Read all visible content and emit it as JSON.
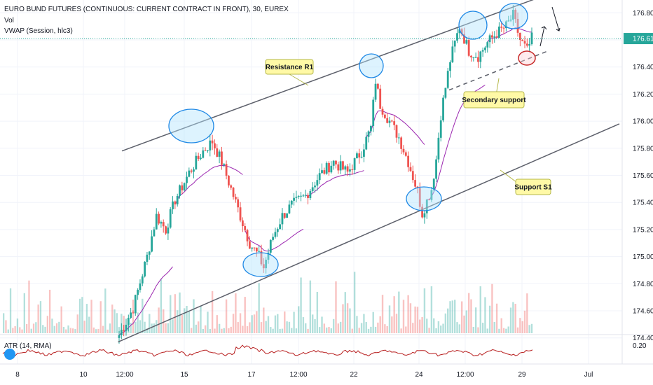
{
  "header": {
    "title": "EURO BUND FUTURES (CONTINUOUS: CURRENT CONTRACT IN FRONT), 30, EUREX",
    "vol_label": "Vol",
    "vwap_label": "VWAP (Session, hlc3)"
  },
  "atr": {
    "label": "ATR (14, RMA)",
    "tick": "0.20"
  },
  "price_axis": {
    "ticks": [
      "176.80",
      "176.60",
      "176.40",
      "176.20",
      "176.00",
      "175.80",
      "175.60",
      "175.40",
      "175.20",
      "175.00",
      "174.80",
      "174.60",
      "174.40"
    ],
    "last_price": "176.61"
  },
  "time_axis": {
    "ticks": [
      "8",
      "10",
      "12:00",
      "15",
      "17",
      "12:00",
      "22",
      "24",
      "12:00",
      "29",
      "Jul"
    ]
  },
  "annotations": {
    "resistance": "Resistance R1",
    "secondary": "Secondary support",
    "support": "Support S1"
  },
  "colors": {
    "up": "#26a69a",
    "down": "#ef5350",
    "vwap": "#9c27b0",
    "atr": "#b71c1c",
    "line": "#5d606b",
    "circle_stroke": "#1e88e5",
    "circle_fill": "#b3e5fc",
    "callout": "#fff9a6",
    "last_price": "#26a69a"
  },
  "chart_data": {
    "type": "candlestick",
    "symbol": "EURO BUND FUTURES (CONTINUOUS: CURRENT CONTRACT IN FRONT)",
    "interval": "30",
    "exchange": "EUREX",
    "last_price": 176.61,
    "price_range": [
      174.3,
      176.9
    ],
    "close_path": [
      [
        0,
        174.42
      ],
      [
        6,
        174.62
      ],
      [
        12,
        175.0
      ],
      [
        16,
        175.3
      ],
      [
        20,
        175.2
      ],
      [
        24,
        175.42
      ],
      [
        28,
        175.55
      ],
      [
        30,
        175.62
      ],
      [
        36,
        175.78
      ],
      [
        40,
        175.85
      ],
      [
        44,
        175.7
      ],
      [
        48,
        175.5
      ],
      [
        52,
        175.3
      ],
      [
        56,
        175.1
      ],
      [
        60,
        175.0
      ],
      [
        62,
        174.92
      ],
      [
        66,
        175.15
      ],
      [
        70,
        175.3
      ],
      [
        74,
        175.38
      ],
      [
        80,
        175.45
      ],
      [
        86,
        175.6
      ],
      [
        92,
        175.7
      ],
      [
        98,
        175.62
      ],
      [
        104,
        175.78
      ],
      [
        108,
        175.95
      ],
      [
        110,
        176.3
      ],
      [
        112,
        176.12
      ],
      [
        116,
        176.0
      ],
      [
        120,
        175.88
      ],
      [
        124,
        175.7
      ],
      [
        128,
        175.48
      ],
      [
        130,
        175.32
      ],
      [
        134,
        175.5
      ],
      [
        136,
        175.72
      ],
      [
        138,
        176.05
      ],
      [
        142,
        176.45
      ],
      [
        146,
        176.7
      ],
      [
        150,
        176.52
      ],
      [
        154,
        176.48
      ],
      [
        158,
        176.58
      ],
      [
        162,
        176.65
      ],
      [
        166,
        176.7
      ],
      [
        169,
        176.78
      ],
      [
        172,
        176.6
      ],
      [
        175,
        176.52
      ],
      [
        177,
        176.61
      ]
    ],
    "resistance_R1": [
      [
        174.0,
        175.78
      ],
      [
        804.5,
        176.98
      ]
    ],
    "support_S1": [
      [
        168.5,
        174.37
      ],
      [
        884.0,
        175.98
      ]
    ],
    "secondary_support": [
      [
        641.0,
        176.23
      ],
      [
        783.0,
        176.52
      ]
    ],
    "atr_reference": 0.2
  }
}
